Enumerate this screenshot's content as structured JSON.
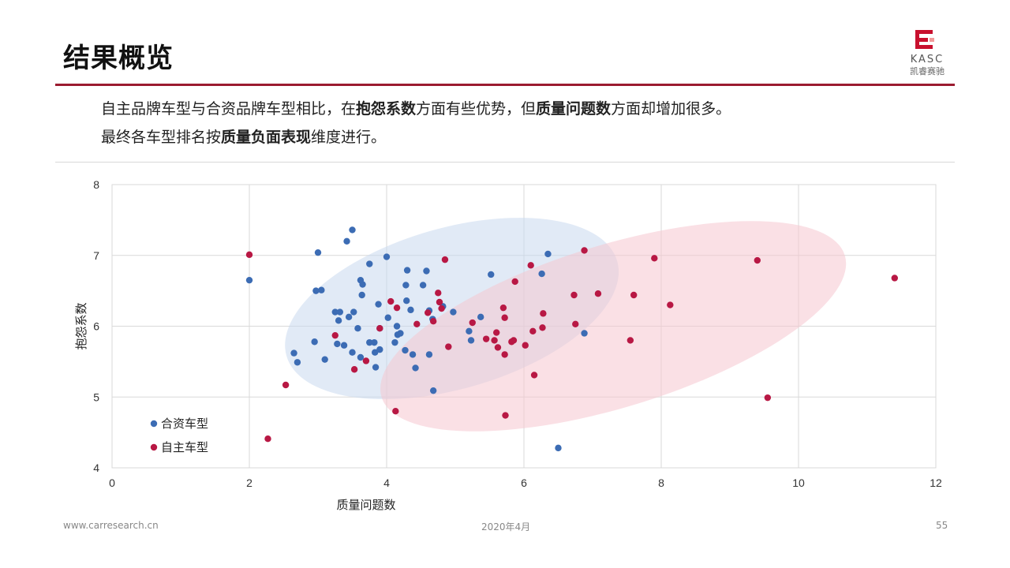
{
  "slide": {
    "title": "结果概览",
    "line1": {
      "p1": "自主品牌车型与合资品牌车型相比，在",
      "b1": "抱怨系数",
      "p2": "方面有些优势，但",
      "b2": "质量问题数",
      "p3": "方面却增加很多。"
    },
    "line2": {
      "p1": "最终各车型排名按",
      "b1": "质量负面表现",
      "p2": "维度进行。"
    }
  },
  "logo": {
    "text": "KASC",
    "sub": "凯睿赛驰"
  },
  "footer": {
    "url": "www.carresearch.cn",
    "date": "2020年4月",
    "page": "55"
  },
  "colors": {
    "accent": "#9b1b30",
    "jv": "#3c6cb4",
    "own": "#b81844"
  },
  "chart_data": {
    "type": "scatter",
    "xlabel": "质量问题数",
    "ylabel": "抱怨系数",
    "xlim": [
      0,
      12
    ],
    "ylim": [
      4,
      8
    ],
    "xticks": [
      "0",
      "2",
      "4",
      "6",
      "8",
      "10",
      "12"
    ],
    "yticks": [
      "4",
      "5",
      "6",
      "7",
      "8"
    ],
    "grid": true,
    "legend_position": "bottom-left",
    "series": [
      {
        "name": "合资车型",
        "color": "#3c6cb4",
        "points": [
          [
            2.0,
            6.65
          ],
          [
            2.65,
            5.62
          ],
          [
            2.7,
            5.49
          ],
          [
            2.95,
            5.78
          ],
          [
            2.97,
            6.5
          ],
          [
            3.0,
            7.04
          ],
          [
            3.05,
            6.51
          ],
          [
            3.1,
            5.53
          ],
          [
            3.25,
            6.2
          ],
          [
            3.28,
            5.75
          ],
          [
            3.3,
            6.08
          ],
          [
            3.32,
            6.2
          ],
          [
            3.38,
            5.73
          ],
          [
            3.42,
            7.2
          ],
          [
            3.45,
            6.13
          ],
          [
            3.5,
            7.36
          ],
          [
            3.5,
            5.63
          ],
          [
            3.52,
            6.2
          ],
          [
            3.58,
            5.97
          ],
          [
            3.62,
            6.65
          ],
          [
            3.62,
            5.56
          ],
          [
            3.64,
            6.44
          ],
          [
            3.65,
            6.59
          ],
          [
            3.75,
            6.88
          ],
          [
            3.75,
            5.77
          ],
          [
            3.82,
            5.77
          ],
          [
            3.83,
            5.63
          ],
          [
            3.84,
            5.42
          ],
          [
            3.88,
            6.31
          ],
          [
            3.9,
            5.67
          ],
          [
            3.9,
            5.97
          ],
          [
            4.0,
            6.98
          ],
          [
            4.02,
            6.12
          ],
          [
            4.12,
            5.77
          ],
          [
            4.15,
            6.0
          ],
          [
            4.16,
            5.88
          ],
          [
            4.2,
            5.9
          ],
          [
            4.27,
            5.66
          ],
          [
            4.28,
            6.58
          ],
          [
            4.29,
            6.36
          ],
          [
            4.3,
            6.79
          ],
          [
            4.35,
            6.23
          ],
          [
            4.38,
            5.6
          ],
          [
            4.42,
            5.41
          ],
          [
            4.53,
            6.58
          ],
          [
            4.58,
            6.78
          ],
          [
            4.62,
            6.22
          ],
          [
            4.62,
            5.6
          ],
          [
            4.67,
            6.1
          ],
          [
            4.68,
            5.09
          ],
          [
            4.82,
            6.28
          ],
          [
            4.97,
            6.2
          ],
          [
            5.2,
            5.93
          ],
          [
            5.23,
            5.8
          ],
          [
            5.37,
            6.13
          ],
          [
            5.52,
            6.73
          ],
          [
            6.26,
            6.74
          ],
          [
            6.35,
            7.02
          ],
          [
            6.5,
            4.28
          ],
          [
            6.88,
            5.9
          ]
        ]
      },
      {
        "name": "自主车型",
        "color": "#b81844",
        "points": [
          [
            2.0,
            7.01
          ],
          [
            2.27,
            4.41
          ],
          [
            2.53,
            5.17
          ],
          [
            3.25,
            5.87
          ],
          [
            3.53,
            5.39
          ],
          [
            3.7,
            5.51
          ],
          [
            3.9,
            5.97
          ],
          [
            4.06,
            6.35
          ],
          [
            4.13,
            4.8
          ],
          [
            4.15,
            6.26
          ],
          [
            4.44,
            6.03
          ],
          [
            4.6,
            6.19
          ],
          [
            4.68,
            6.07
          ],
          [
            4.75,
            6.47
          ],
          [
            4.77,
            6.34
          ],
          [
            4.8,
            6.25
          ],
          [
            4.85,
            6.94
          ],
          [
            4.9,
            5.71
          ],
          [
            5.25,
            6.05
          ],
          [
            5.45,
            5.82
          ],
          [
            5.57,
            5.8
          ],
          [
            5.6,
            5.91
          ],
          [
            5.62,
            5.7
          ],
          [
            5.7,
            6.26
          ],
          [
            5.72,
            6.12
          ],
          [
            5.72,
            5.6
          ],
          [
            5.73,
            4.74
          ],
          [
            5.82,
            5.78
          ],
          [
            5.85,
            5.8
          ],
          [
            5.87,
            6.63
          ],
          [
            6.02,
            5.73
          ],
          [
            6.1,
            6.86
          ],
          [
            6.13,
            5.93
          ],
          [
            6.15,
            5.31
          ],
          [
            6.27,
            5.98
          ],
          [
            6.28,
            6.18
          ],
          [
            6.73,
            6.44
          ],
          [
            6.75,
            6.03
          ],
          [
            6.88,
            7.07
          ],
          [
            7.08,
            6.46
          ],
          [
            7.55,
            5.8
          ],
          [
            7.6,
            6.44
          ],
          [
            7.9,
            6.96
          ],
          [
            8.13,
            6.3
          ],
          [
            9.4,
            6.93
          ],
          [
            9.55,
            4.99
          ],
          [
            11.4,
            6.68
          ]
        ]
      }
    ],
    "ellipses": [
      {
        "series": "合资车型",
        "cx": 4.95,
        "cy": 6.25,
        "rx_deg": [
          3.0,
          0.31
        ],
        "ry": 1.0,
        "rotate": -16,
        "opacity": 0.35
      },
      {
        "series": "自主车型",
        "cx": 7.3,
        "cy": 6.0,
        "rx_deg": [
          4.9,
          0.3
        ],
        "ry": 1.0,
        "rotate": -17,
        "opacity": 0.45
      }
    ]
  }
}
